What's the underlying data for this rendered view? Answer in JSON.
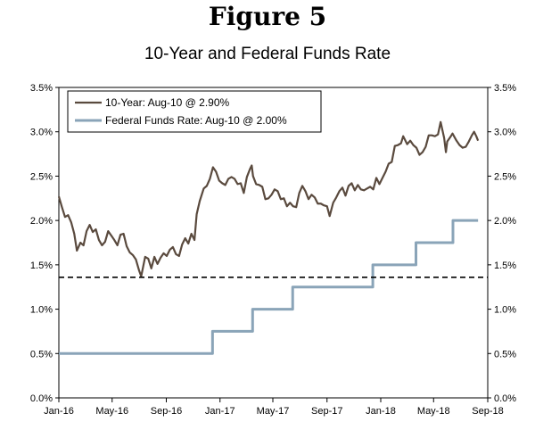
{
  "figure": {
    "title": "Figure 5",
    "subtitle": "10-Year and Federal Funds Rate"
  },
  "chart_data": {
    "type": "line",
    "title": "10-Year and Federal Funds Rate",
    "xlabel": "",
    "ylabel": "",
    "ylim": [
      0,
      3.5
    ],
    "y_ticks": [
      "0.0%",
      "0.5%",
      "1.0%",
      "1.5%",
      "2.0%",
      "2.5%",
      "3.0%",
      "3.5%"
    ],
    "y_tick_values": [
      0,
      0.5,
      1.0,
      1.5,
      2.0,
      2.5,
      3.0,
      3.5
    ],
    "x_ticks": [
      "Jan-16",
      "May-16",
      "Sep-16",
      "Jan-17",
      "May-17",
      "Sep-17",
      "Jan-18",
      "May-18",
      "Sep-18"
    ],
    "x_tick_dates": [
      "2016-01-01",
      "2016-05-01",
      "2016-09-01",
      "2017-01-01",
      "2017-05-01",
      "2017-09-01",
      "2018-01-01",
      "2018-05-01",
      "2018-09-01"
    ],
    "xlim": [
      "2016-01-01",
      "2018-09-01"
    ],
    "grid": false,
    "legend_position": "top-left",
    "reference_line": {
      "value": 1.36,
      "style": "dashed",
      "color": "#000000"
    },
    "series": [
      {
        "name": "10-Year: Aug-10 @ 2.90%",
        "color": "#5a4a3e",
        "step": false,
        "points": [
          [
            "2016-01-01",
            2.27
          ],
          [
            "2016-01-08",
            2.15
          ],
          [
            "2016-01-15",
            2.04
          ],
          [
            "2016-01-22",
            2.06
          ],
          [
            "2016-01-29",
            1.98
          ],
          [
            "2016-02-05",
            1.85
          ],
          [
            "2016-02-11",
            1.66
          ],
          [
            "2016-02-19",
            1.75
          ],
          [
            "2016-02-26",
            1.72
          ],
          [
            "2016-03-04",
            1.88
          ],
          [
            "2016-03-11",
            1.95
          ],
          [
            "2016-03-18",
            1.87
          ],
          [
            "2016-03-25",
            1.9
          ],
          [
            "2016-04-01",
            1.78
          ],
          [
            "2016-04-08",
            1.72
          ],
          [
            "2016-04-15",
            1.76
          ],
          [
            "2016-04-22",
            1.88
          ],
          [
            "2016-04-29",
            1.83
          ],
          [
            "2016-05-06",
            1.78
          ],
          [
            "2016-05-13",
            1.72
          ],
          [
            "2016-05-20",
            1.84
          ],
          [
            "2016-05-27",
            1.85
          ],
          [
            "2016-06-03",
            1.71
          ],
          [
            "2016-06-10",
            1.64
          ],
          [
            "2016-06-17",
            1.61
          ],
          [
            "2016-06-24",
            1.56
          ],
          [
            "2016-07-01",
            1.44
          ],
          [
            "2016-07-06",
            1.37
          ],
          [
            "2016-07-15",
            1.59
          ],
          [
            "2016-07-22",
            1.57
          ],
          [
            "2016-07-29",
            1.46
          ],
          [
            "2016-08-05",
            1.59
          ],
          [
            "2016-08-12",
            1.51
          ],
          [
            "2016-08-19",
            1.58
          ],
          [
            "2016-08-26",
            1.63
          ],
          [
            "2016-09-02",
            1.6
          ],
          [
            "2016-09-09",
            1.67
          ],
          [
            "2016-09-16",
            1.7
          ],
          [
            "2016-09-23",
            1.62
          ],
          [
            "2016-09-30",
            1.6
          ],
          [
            "2016-10-07",
            1.73
          ],
          [
            "2016-10-14",
            1.8
          ],
          [
            "2016-10-21",
            1.74
          ],
          [
            "2016-10-28",
            1.85
          ],
          [
            "2016-11-04",
            1.78
          ],
          [
            "2016-11-09",
            2.07
          ],
          [
            "2016-11-16",
            2.22
          ],
          [
            "2016-11-25",
            2.36
          ],
          [
            "2016-12-02",
            2.39
          ],
          [
            "2016-12-09",
            2.47
          ],
          [
            "2016-12-16",
            2.6
          ],
          [
            "2016-12-23",
            2.55
          ],
          [
            "2016-12-30",
            2.45
          ],
          [
            "2017-01-06",
            2.42
          ],
          [
            "2017-01-13",
            2.4
          ],
          [
            "2017-01-20",
            2.47
          ],
          [
            "2017-01-27",
            2.49
          ],
          [
            "2017-02-03",
            2.47
          ],
          [
            "2017-02-10",
            2.41
          ],
          [
            "2017-02-17",
            2.42
          ],
          [
            "2017-02-24",
            2.31
          ],
          [
            "2017-03-03",
            2.49
          ],
          [
            "2017-03-10",
            2.58
          ],
          [
            "2017-03-14",
            2.62
          ],
          [
            "2017-03-17",
            2.5
          ],
          [
            "2017-03-24",
            2.41
          ],
          [
            "2017-03-31",
            2.4
          ],
          [
            "2017-04-07",
            2.38
          ],
          [
            "2017-04-14",
            2.24
          ],
          [
            "2017-04-21",
            2.25
          ],
          [
            "2017-04-28",
            2.29
          ],
          [
            "2017-05-05",
            2.35
          ],
          [
            "2017-05-12",
            2.33
          ],
          [
            "2017-05-19",
            2.24
          ],
          [
            "2017-05-26",
            2.25
          ],
          [
            "2017-06-02",
            2.16
          ],
          [
            "2017-06-09",
            2.2
          ],
          [
            "2017-06-16",
            2.16
          ],
          [
            "2017-06-23",
            2.15
          ],
          [
            "2017-06-30",
            2.31
          ],
          [
            "2017-07-07",
            2.39
          ],
          [
            "2017-07-14",
            2.33
          ],
          [
            "2017-07-21",
            2.24
          ],
          [
            "2017-07-28",
            2.29
          ],
          [
            "2017-08-04",
            2.26
          ],
          [
            "2017-08-11",
            2.19
          ],
          [
            "2017-08-18",
            2.19
          ],
          [
            "2017-08-25",
            2.17
          ],
          [
            "2017-09-01",
            2.16
          ],
          [
            "2017-09-07",
            2.05
          ],
          [
            "2017-09-15",
            2.2
          ],
          [
            "2017-09-22",
            2.26
          ],
          [
            "2017-09-29",
            2.33
          ],
          [
            "2017-10-06",
            2.37
          ],
          [
            "2017-10-13",
            2.28
          ],
          [
            "2017-10-20",
            2.39
          ],
          [
            "2017-10-27",
            2.42
          ],
          [
            "2017-11-03",
            2.34
          ],
          [
            "2017-11-10",
            2.4
          ],
          [
            "2017-11-17",
            2.35
          ],
          [
            "2017-11-24",
            2.34
          ],
          [
            "2017-12-01",
            2.36
          ],
          [
            "2017-12-08",
            2.38
          ],
          [
            "2017-12-15",
            2.35
          ],
          [
            "2017-12-22",
            2.48
          ],
          [
            "2017-12-29",
            2.41
          ],
          [
            "2018-01-05",
            2.48
          ],
          [
            "2018-01-12",
            2.55
          ],
          [
            "2018-01-19",
            2.64
          ],
          [
            "2018-01-26",
            2.66
          ],
          [
            "2018-02-02",
            2.84
          ],
          [
            "2018-02-09",
            2.85
          ],
          [
            "2018-02-16",
            2.87
          ],
          [
            "2018-02-21",
            2.95
          ],
          [
            "2018-03-02",
            2.86
          ],
          [
            "2018-03-09",
            2.9
          ],
          [
            "2018-03-16",
            2.85
          ],
          [
            "2018-03-23",
            2.82
          ],
          [
            "2018-03-30",
            2.74
          ],
          [
            "2018-04-06",
            2.77
          ],
          [
            "2018-04-13",
            2.83
          ],
          [
            "2018-04-20",
            2.96
          ],
          [
            "2018-04-27",
            2.96
          ],
          [
            "2018-05-04",
            2.95
          ],
          [
            "2018-05-11",
            2.97
          ],
          [
            "2018-05-17",
            3.11
          ],
          [
            "2018-05-25",
            2.93
          ],
          [
            "2018-05-29",
            2.77
          ],
          [
            "2018-06-01",
            2.89
          ],
          [
            "2018-06-08",
            2.94
          ],
          [
            "2018-06-13",
            2.98
          ],
          [
            "2018-06-22",
            2.9
          ],
          [
            "2018-06-29",
            2.85
          ],
          [
            "2018-07-06",
            2.82
          ],
          [
            "2018-07-13",
            2.83
          ],
          [
            "2018-07-20",
            2.89
          ],
          [
            "2018-07-27",
            2.96
          ],
          [
            "2018-08-01",
            3.0
          ],
          [
            "2018-08-06",
            2.95
          ],
          [
            "2018-08-10",
            2.9
          ]
        ]
      },
      {
        "name": "Federal Funds Rate: Aug-10 @ 2.00%",
        "color": "#8aa4b8",
        "step": true,
        "points": [
          [
            "2016-01-01",
            0.5
          ],
          [
            "2016-12-15",
            0.75
          ],
          [
            "2017-03-16",
            1.0
          ],
          [
            "2017-06-15",
            1.25
          ],
          [
            "2017-12-14",
            1.5
          ],
          [
            "2018-03-22",
            1.75
          ],
          [
            "2018-06-14",
            2.0
          ],
          [
            "2018-08-10",
            2.0
          ]
        ]
      }
    ]
  }
}
